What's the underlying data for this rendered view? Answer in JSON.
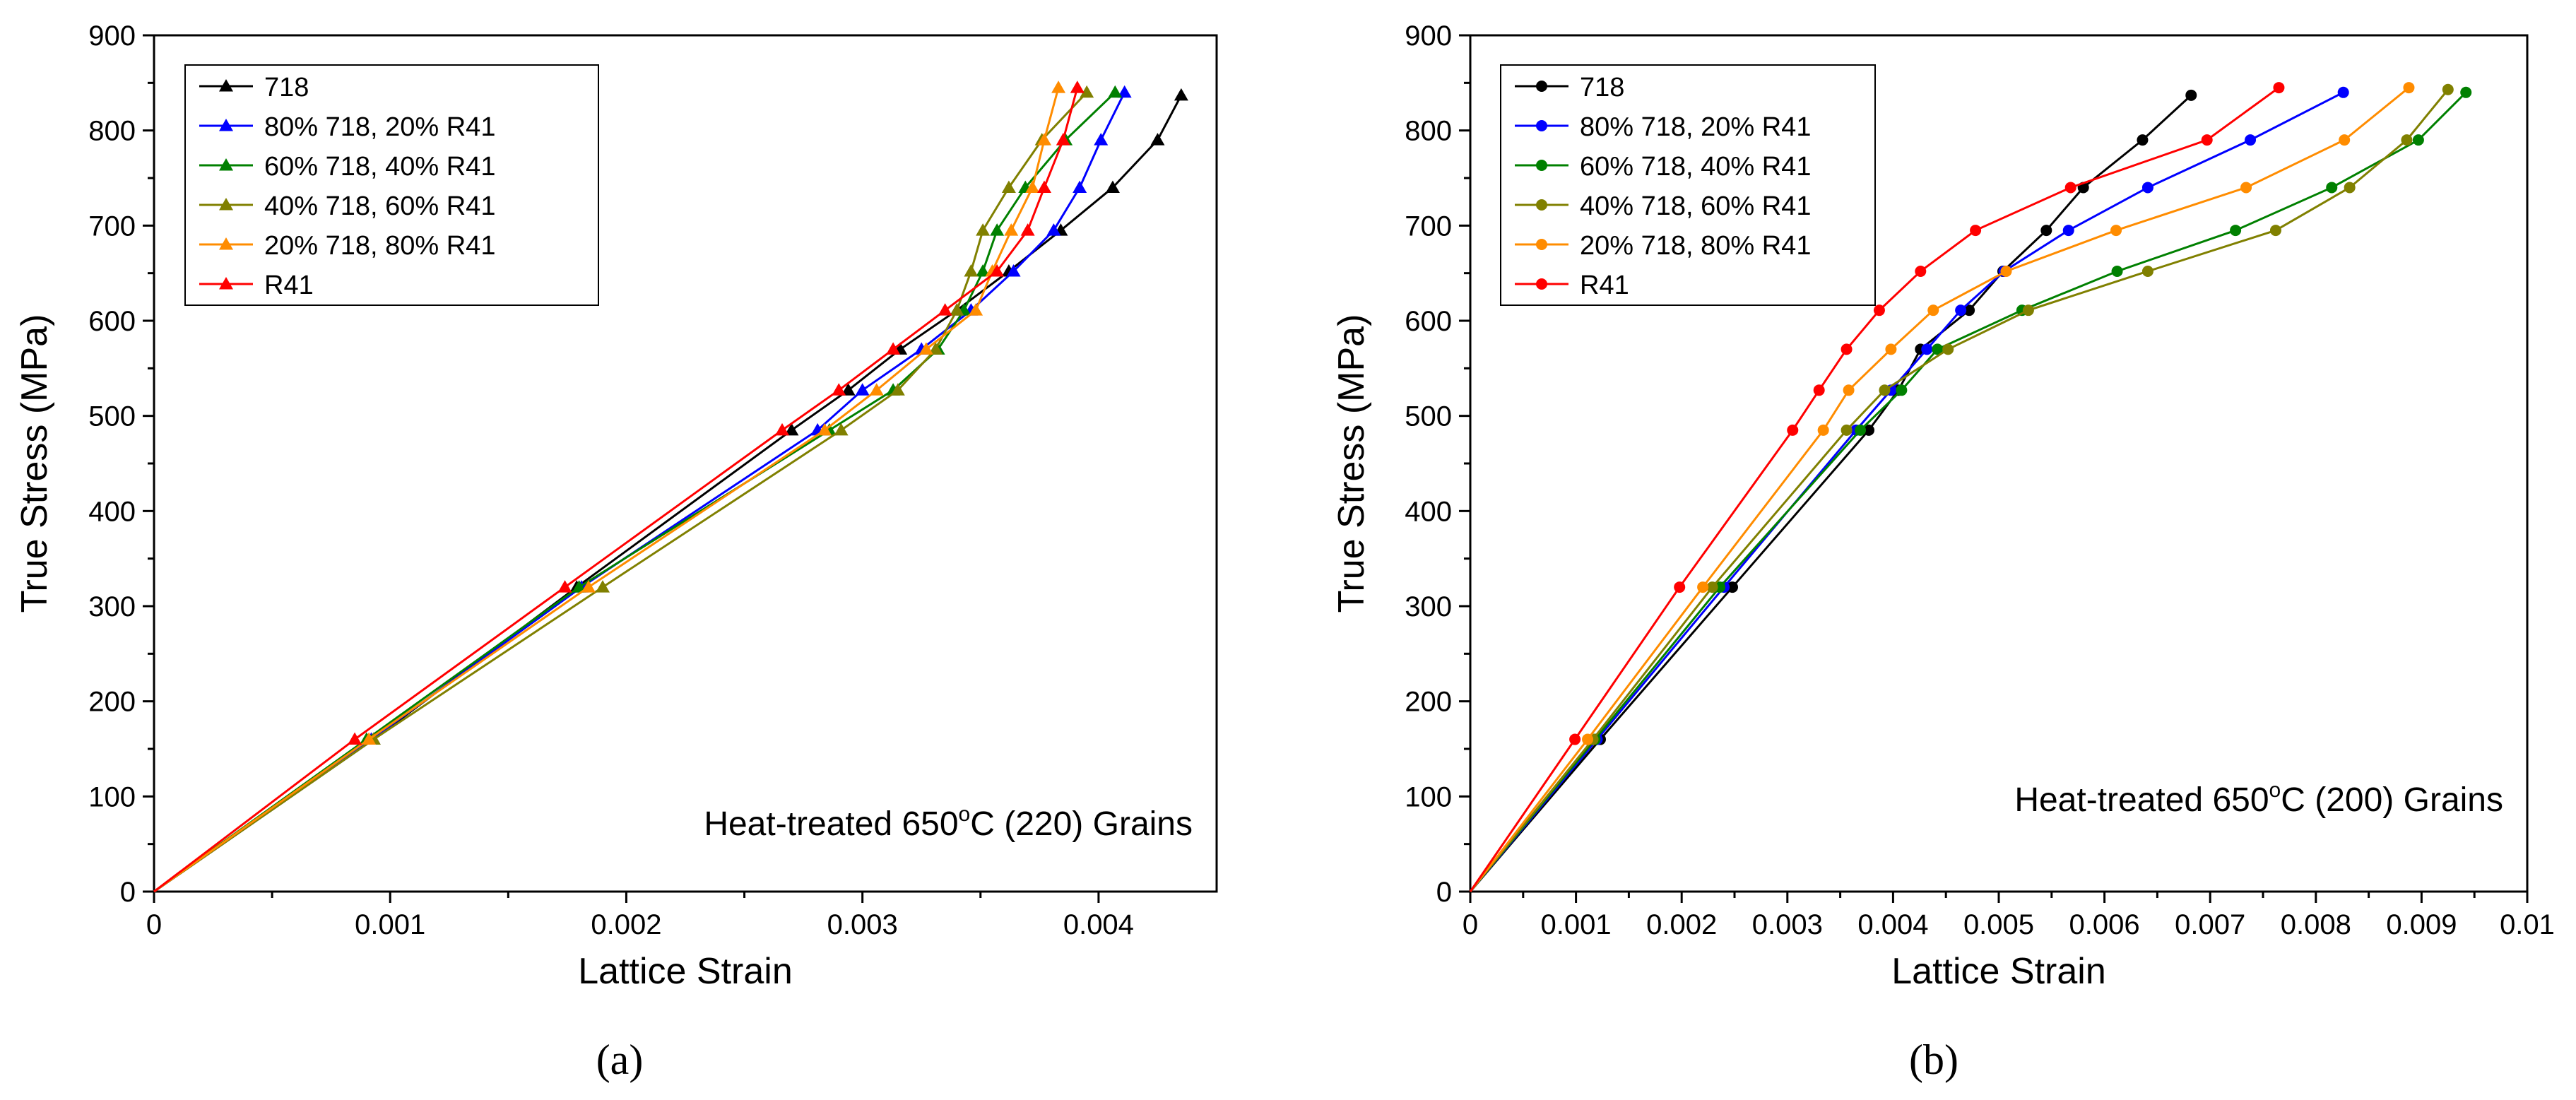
{
  "chart_data": [
    {
      "panel": "(a)",
      "type": "line",
      "marker": "triangle",
      "annotation": "Heat-treated 650°C (220) Grains",
      "annotation_main": "Heat-treated 650",
      "annotation_sup": "o",
      "annotation_rest": "C (220) Grains",
      "xlabel": "Lattice Strain",
      "ylabel": "True Stress (MPa)",
      "xlim": [
        0,
        0.0045
      ],
      "ylim": [
        0,
        900
      ],
      "xticks": [
        0,
        0.001,
        0.002,
        0.003,
        0.004
      ],
      "xtick_labels": [
        "0",
        "0.001",
        "0.002",
        "0.003",
        "0.004"
      ],
      "yticks": [
        0,
        100,
        200,
        300,
        400,
        500,
        600,
        700,
        800,
        900
      ],
      "ytick_labels": [
        "0",
        "100",
        "200",
        "300",
        "400",
        "500",
        "600",
        "700",
        "800",
        "900"
      ],
      "legend_position": "top-left",
      "series": [
        {
          "name": "718",
          "color": "#000000",
          "x": [
            0,
            0.00093,
            0.00179,
            0.0027,
            0.00294,
            0.00316,
            0.0034,
            0.00362,
            0.00384,
            0.00406,
            0.00425,
            0.00435
          ],
          "y": [
            0,
            160,
            320,
            485,
            527,
            570,
            611,
            652,
            695,
            740,
            790,
            837
          ]
        },
        {
          "name": "80% 718, 20% R41",
          "color": "#0000ff",
          "x": [
            0,
            0.00092,
            0.00181,
            0.00281,
            0.003,
            0.00325,
            0.00346,
            0.00364,
            0.00381,
            0.00392,
            0.00401,
            0.00411
          ],
          "y": [
            0,
            160,
            320,
            485,
            527,
            570,
            611,
            652,
            695,
            740,
            790,
            840
          ]
        },
        {
          "name": "60% 718, 40% R41",
          "color": "#008000",
          "x": [
            0,
            0.0009,
            0.0018,
            0.00286,
            0.00313,
            0.00332,
            0.00343,
            0.00351,
            0.00357,
            0.00369,
            0.00386,
            0.00407
          ],
          "y": [
            0,
            160,
            320,
            485,
            527,
            570,
            611,
            652,
            695,
            740,
            790,
            840
          ]
        },
        {
          "name": "40% 718, 60% R41",
          "color": "#808000",
          "x": [
            0,
            0.00093,
            0.0019,
            0.00291,
            0.00315,
            0.00331,
            0.0034,
            0.00346,
            0.00351,
            0.00362,
            0.00376,
            0.00395
          ],
          "y": [
            0,
            160,
            320,
            485,
            527,
            570,
            611,
            652,
            695,
            740,
            790,
            840
          ]
        },
        {
          "name": "20% 718, 80% R41",
          "color": "#ff8c00",
          "x": [
            0,
            0.00091,
            0.00184,
            0.00284,
            0.00306,
            0.00327,
            0.00348,
            0.00355,
            0.00363,
            0.00372,
            0.00377,
            0.00383
          ],
          "y": [
            0,
            160,
            320,
            485,
            527,
            570,
            611,
            652,
            695,
            740,
            790,
            845
          ]
        },
        {
          "name": "R41",
          "color": "#ff0000",
          "x": [
            0,
            0.00085,
            0.00174,
            0.00266,
            0.0029,
            0.00313,
            0.00335,
            0.00357,
            0.0037,
            0.00377,
            0.00385,
            0.00391
          ],
          "y": [
            0,
            160,
            320,
            485,
            527,
            570,
            611,
            652,
            695,
            740,
            790,
            845
          ]
        }
      ]
    },
    {
      "panel": "(b)",
      "type": "line",
      "marker": "circle",
      "annotation": "Heat-treated 650°C (200) Grains",
      "annotation_main": "Heat-treated 650",
      "annotation_sup": "o",
      "annotation_rest": "C (200) Grains",
      "xlabel": "Lattice Strain",
      "ylabel": "True Stress (MPa)",
      "xlim": [
        0,
        0.01
      ],
      "ylim": [
        0,
        900
      ],
      "xticks": [
        0,
        0.001,
        0.002,
        0.003,
        0.004,
        0.005,
        0.006,
        0.007,
        0.008,
        0.009,
        0.01
      ],
      "xtick_labels": [
        "0",
        "0.001",
        "0.002",
        "0.003",
        "0.004",
        "0.005",
        "0.006",
        "0.007",
        "0.008",
        "0.009",
        "0.01"
      ],
      "yticks": [
        0,
        100,
        200,
        300,
        400,
        500,
        600,
        700,
        800,
        900
      ],
      "ytick_labels": [
        "0",
        "100",
        "200",
        "300",
        "400",
        "500",
        "600",
        "700",
        "800",
        "900"
      ],
      "legend_position": "top-left",
      "series": [
        {
          "name": "718",
          "color": "#000000",
          "x": [
            0,
            0.00123,
            0.00248,
            0.00377,
            0.00405,
            0.00426,
            0.00472,
            0.00504,
            0.00545,
            0.0058,
            0.00636,
            0.00682
          ],
          "y": [
            0,
            160,
            320,
            485,
            527,
            570,
            611,
            652,
            695,
            740,
            790,
            837
          ]
        },
        {
          "name": "80% 718, 20% R41",
          "color": "#0000ff",
          "x": [
            0,
            0.0012,
            0.0024,
            0.00365,
            0.00398,
            0.00432,
            0.00464,
            0.00505,
            0.00566,
            0.00641,
            0.00738,
            0.00826
          ],
          "y": [
            0,
            160,
            320,
            485,
            527,
            570,
            611,
            652,
            695,
            740,
            790,
            840
          ]
        },
        {
          "name": "60% 718, 40% R41",
          "color": "#008000",
          "x": [
            0,
            0.00118,
            0.00236,
            0.00369,
            0.00408,
            0.00442,
            0.00522,
            0.00612,
            0.00724,
            0.00815,
            0.00897,
            0.00942
          ],
          "y": [
            0,
            160,
            320,
            485,
            527,
            570,
            611,
            652,
            695,
            740,
            790,
            840
          ]
        },
        {
          "name": "40% 718, 60% R41",
          "color": "#808000",
          "x": [
            0,
            0.00116,
            0.00229,
            0.00356,
            0.00392,
            0.00452,
            0.00528,
            0.00641,
            0.00762,
            0.00832,
            0.00886,
            0.00925
          ],
          "y": [
            0,
            160,
            320,
            485,
            527,
            570,
            611,
            652,
            695,
            740,
            790,
            843
          ]
        },
        {
          "name": "20% 718, 80% R41",
          "color": "#ff8c00",
          "x": [
            0,
            0.00111,
            0.0022,
            0.00334,
            0.00358,
            0.00398,
            0.00438,
            0.00507,
            0.00611,
            0.00734,
            0.00827,
            0.00888
          ],
          "y": [
            0,
            160,
            320,
            485,
            527,
            570,
            611,
            652,
            695,
            740,
            790,
            845
          ]
        },
        {
          "name": "R41",
          "color": "#ff0000",
          "x": [
            0,
            0.00099,
            0.00198,
            0.00305,
            0.0033,
            0.00356,
            0.00387,
            0.00426,
            0.00478,
            0.00568,
            0.00697,
            0.00765
          ],
          "y": [
            0,
            160,
            320,
            485,
            527,
            570,
            611,
            652,
            695,
            740,
            790,
            845
          ]
        }
      ]
    }
  ]
}
